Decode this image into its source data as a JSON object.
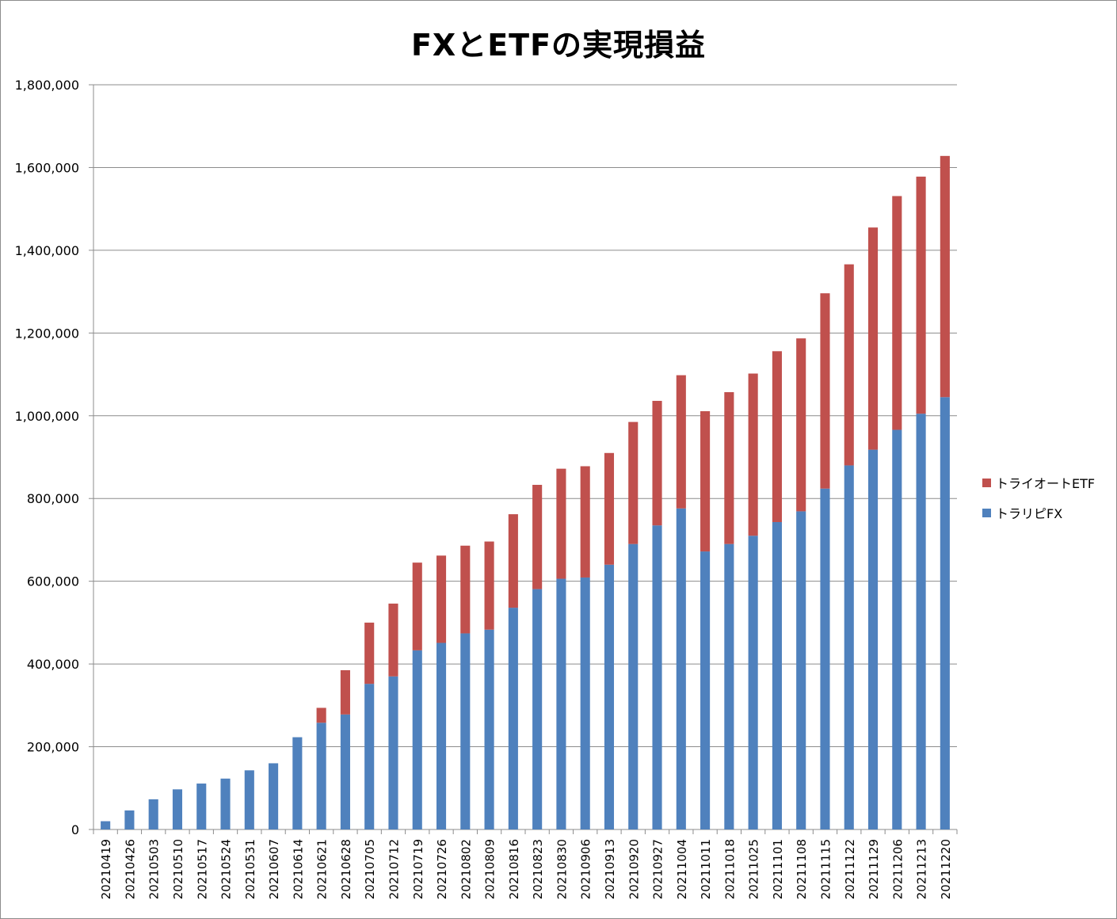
{
  "chart_data": {
    "type": "bar",
    "stacked": true,
    "title": "FXとETFの実現損益",
    "xlabel": "",
    "ylabel": "",
    "ylim": [
      0,
      1800000
    ],
    "yticks": [
      "0",
      "200,000",
      "400,000",
      "600,000",
      "800,000",
      "1,000,000",
      "1,200,000",
      "1,400,000",
      "1,600,000",
      "1,800,000"
    ],
    "grid": true,
    "legend_position": "right",
    "categories": [
      "20210419",
      "20210426",
      "20210503",
      "20210510",
      "20210517",
      "20210524",
      "20210531",
      "20210607",
      "20210614",
      "20210621",
      "20210628",
      "20210705",
      "20210712",
      "20210719",
      "20210726",
      "20210802",
      "20210809",
      "20210816",
      "20210823",
      "20210830",
      "20210906",
      "20210913",
      "20210920",
      "20210927",
      "20211004",
      "20211011",
      "20211018",
      "20211025",
      "20211101",
      "20211108",
      "20211115",
      "20211122",
      "20211129",
      "20211206",
      "20211213",
      "20211220"
    ],
    "series": [
      {
        "name": "トラリピFX",
        "color": "#4F81BD",
        "values": [
          20000,
          46000,
          73000,
          97000,
          111000,
          123000,
          143000,
          160000,
          223000,
          258000,
          278000,
          352000,
          370000,
          433000,
          451000,
          474000,
          483000,
          536000,
          581000,
          606000,
          609000,
          640000,
          690000,
          735000,
          776000,
          672000,
          690000,
          710000,
          743000,
          769000,
          824000,
          880000,
          918000,
          966000,
          1005000,
          1045000
        ]
      },
      {
        "name": "トライオートETF",
        "color": "#C0504D",
        "values": [
          0,
          0,
          0,
          0,
          0,
          0,
          0,
          0,
          0,
          36000,
          107000,
          148000,
          176000,
          212000,
          211000,
          212000,
          213000,
          226000,
          252000,
          266000,
          269000,
          270000,
          295000,
          301000,
          322000,
          339000,
          367000,
          392000,
          413000,
          418000,
          472000,
          486000,
          537000,
          565000,
          573000,
          583000
        ]
      }
    ]
  },
  "legend": {
    "items": [
      {
        "label": "トライオートETF",
        "color": "#C0504D"
      },
      {
        "label": "トラリピFX",
        "color": "#4F81BD"
      }
    ]
  }
}
